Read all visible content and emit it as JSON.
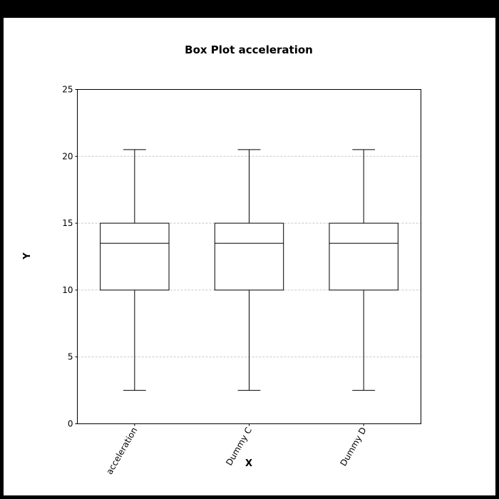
{
  "chart_data": {
    "type": "box",
    "title": "Box Plot acceleration",
    "xlabel": "X",
    "ylabel": "Y",
    "ylim": [
      0,
      25
    ],
    "yticks": [
      0,
      5,
      10,
      15,
      20,
      25
    ],
    "grid": true,
    "categories": [
      "acceleration",
      "Dummy C",
      "Dummy D"
    ],
    "boxes": [
      {
        "name": "acceleration",
        "whisker_low": 2.5,
        "q1": 10,
        "median": 13.5,
        "q3": 15,
        "whisker_high": 20.5
      },
      {
        "name": "Dummy C",
        "whisker_low": 2.5,
        "q1": 10,
        "median": 13.5,
        "q3": 15,
        "whisker_high": 20.5
      },
      {
        "name": "Dummy D",
        "whisker_low": 2.5,
        "q1": 10,
        "median": 13.5,
        "q3": 15,
        "whisker_high": 20.5
      }
    ]
  }
}
